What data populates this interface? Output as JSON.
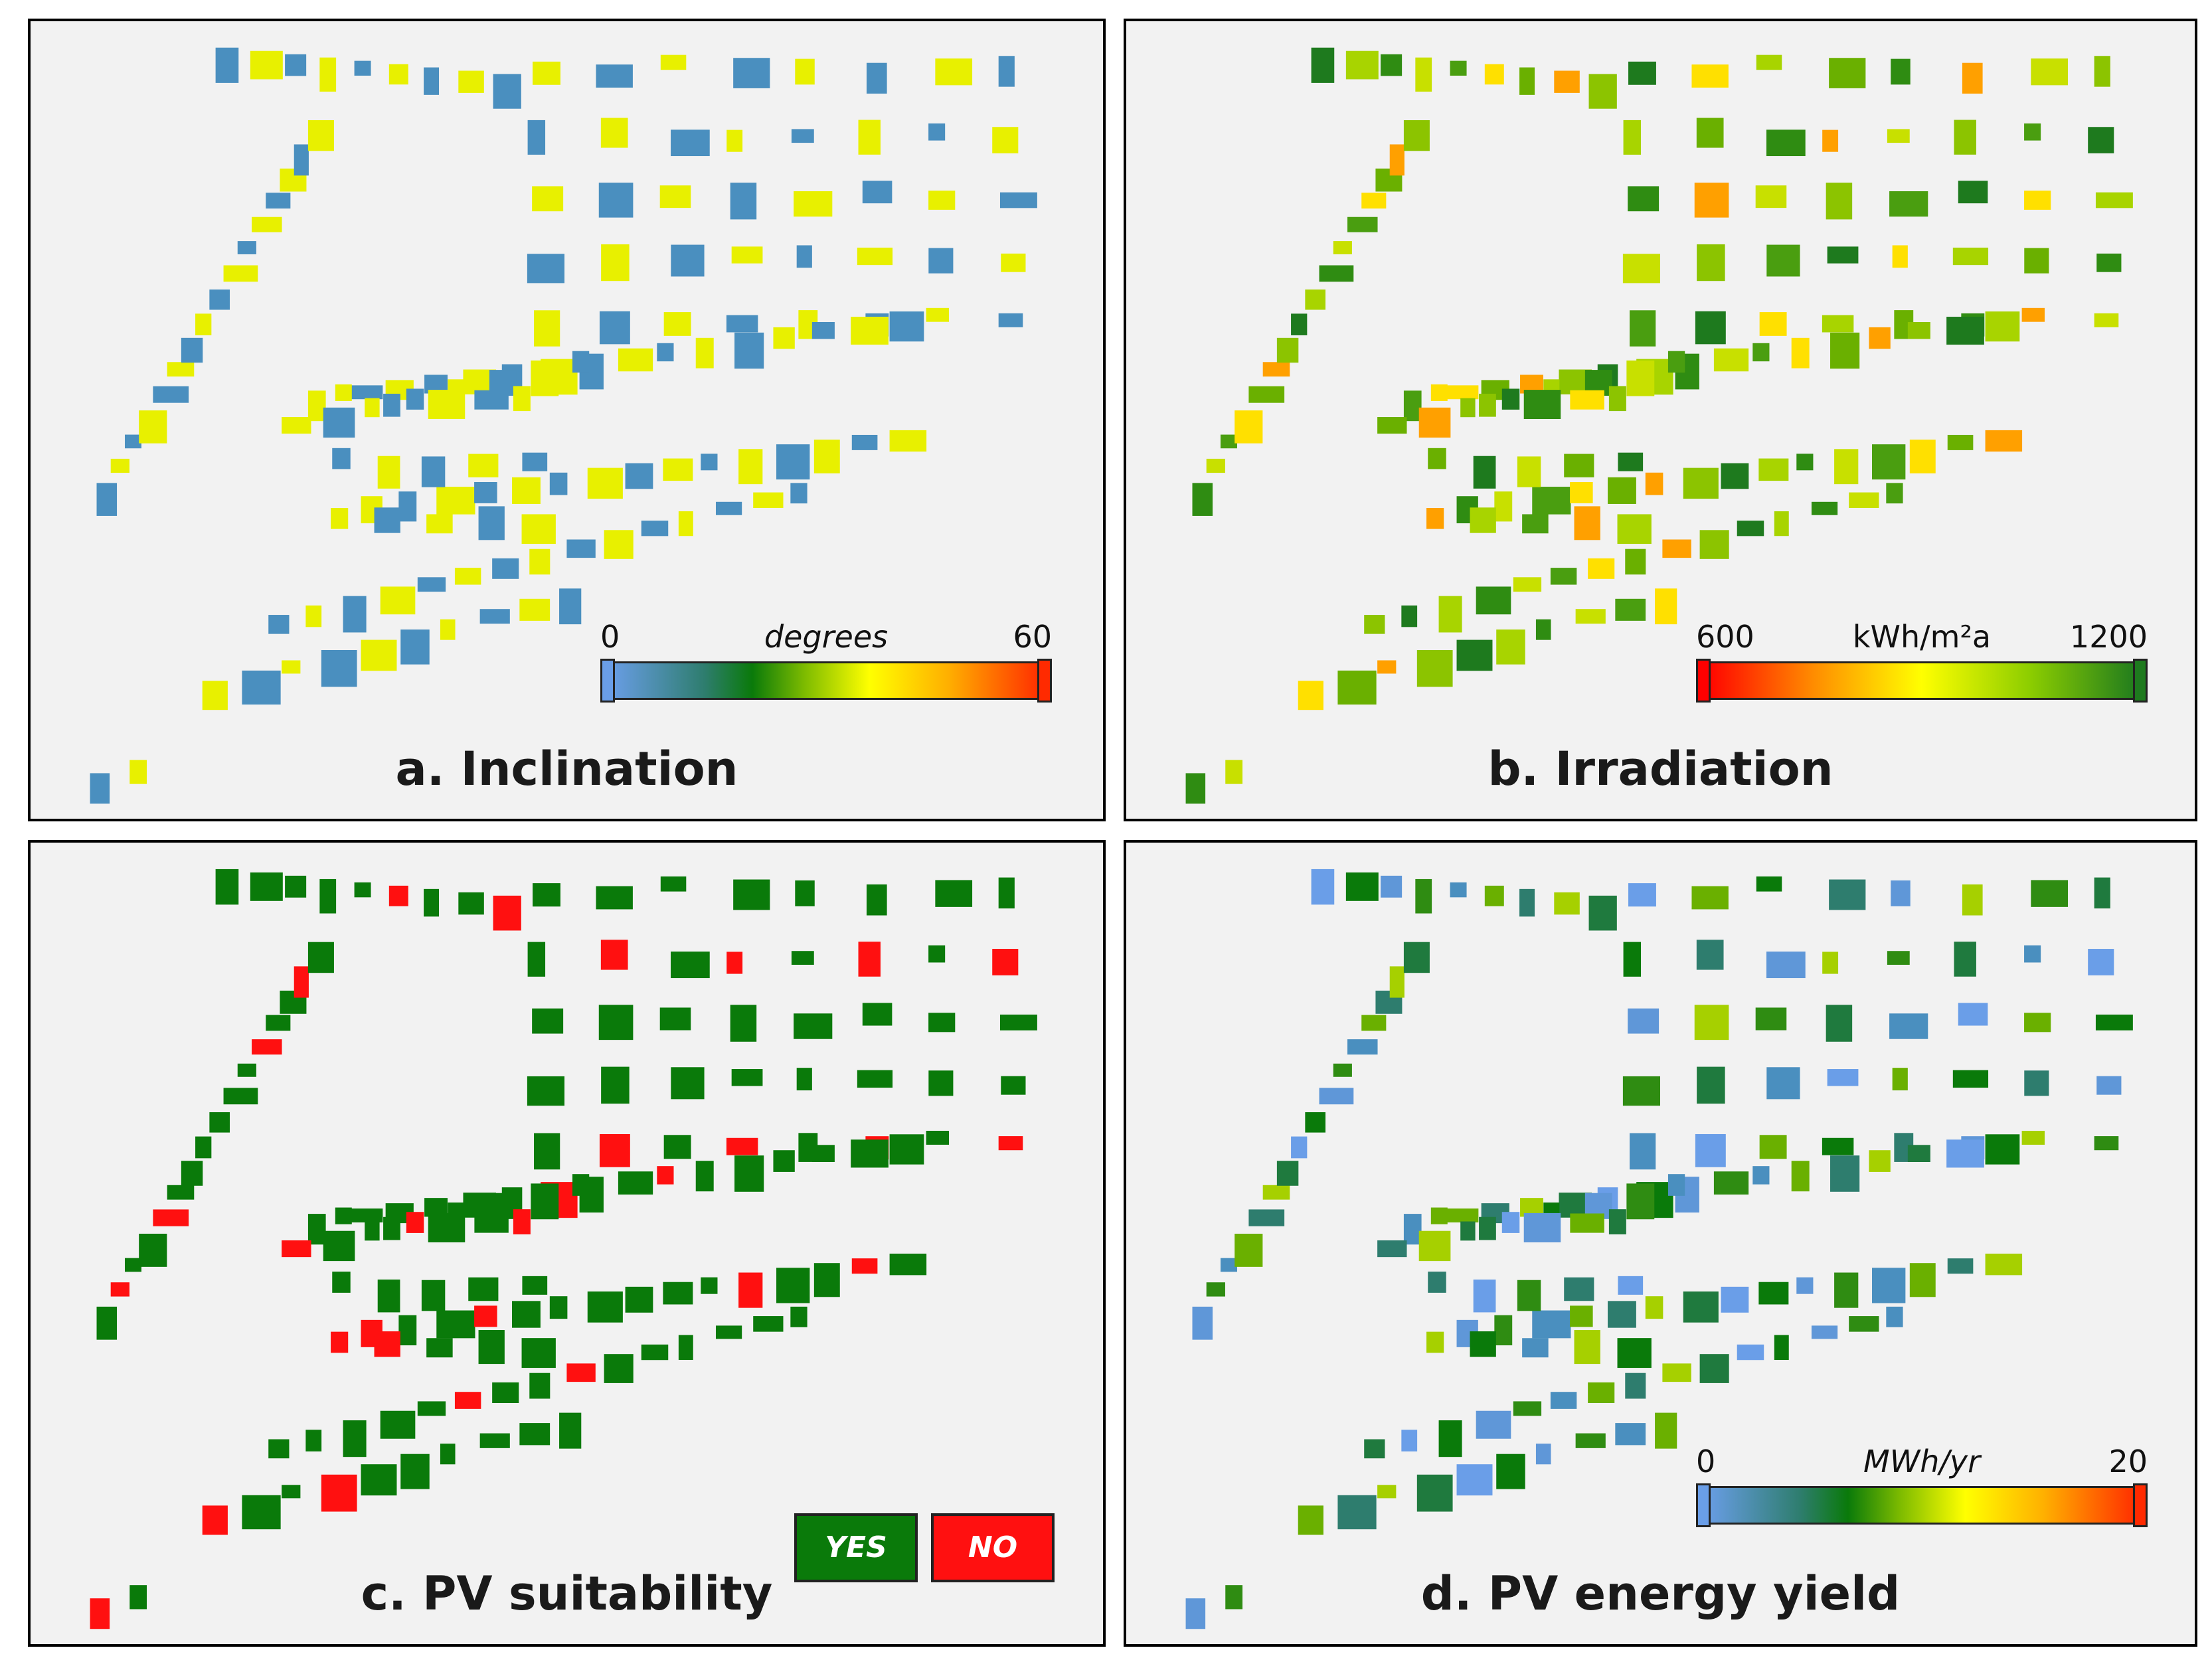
{
  "panels": {
    "a": {
      "title": "a. Inclination",
      "legend": {
        "min": "0",
        "max": "60",
        "unit": "degrees",
        "bar_min_color": "#6a9ee8",
        "bar_max_color": "#ff2a00"
      }
    },
    "b": {
      "title": "b. Irradiation",
      "legend": {
        "min": "600",
        "max": "1200",
        "unit": "kWh/m²a",
        "bar_min_color": "#ff0000",
        "bar_max_color": "#1e7a1e"
      }
    },
    "c": {
      "title": "c. PV suitability",
      "legend": {
        "yes": "YES",
        "no": "NO",
        "yes_color": "#0a7a0a",
        "no_color": "#ff1010"
      }
    },
    "d": {
      "title": "d. PV energy yield",
      "legend": {
        "min": "0",
        "max": "20",
        "unit": "MWh/yr",
        "bar_min_color": "#6a9ee8",
        "bar_max_color": "#ff2a00"
      }
    }
  },
  "colors": {
    "map_background": "#f2f2f2",
    "panel_border": "#000000"
  }
}
